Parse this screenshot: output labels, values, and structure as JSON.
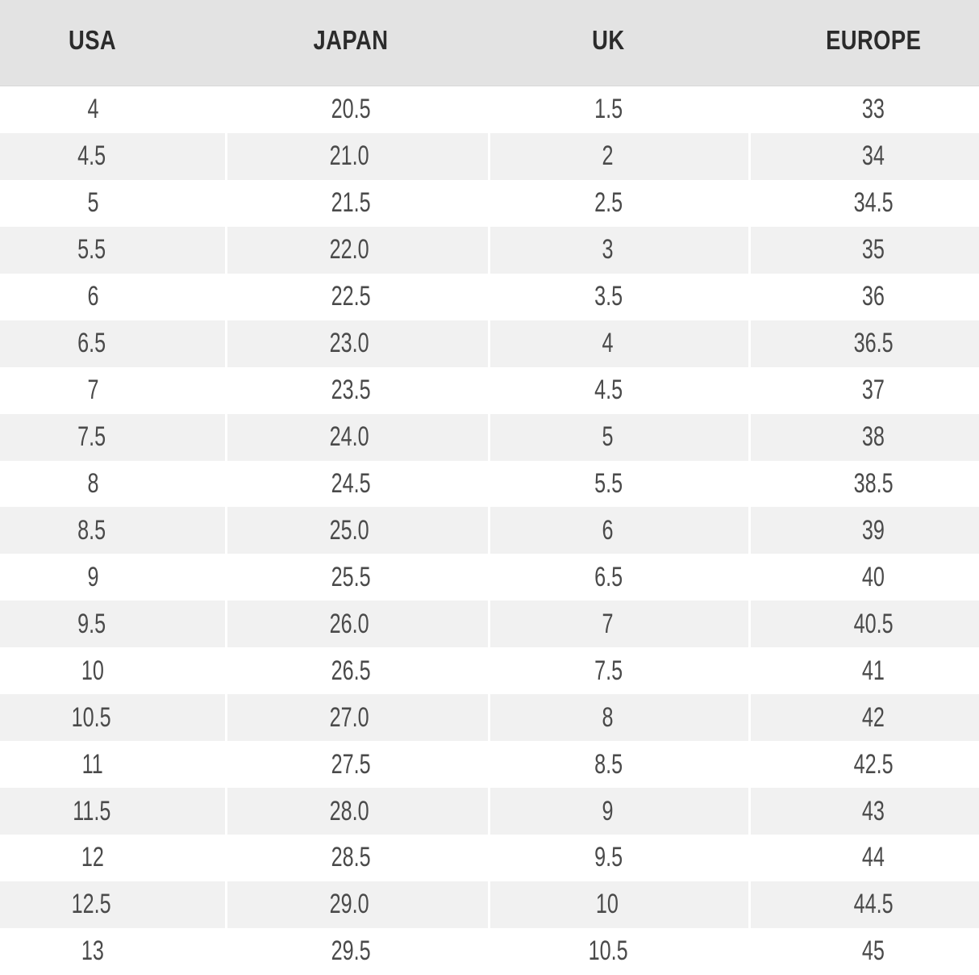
{
  "table": {
    "columns": [
      "USA",
      "JAPAN",
      "UK",
      "EUROPE"
    ],
    "rows": [
      [
        "4",
        "20.5",
        "1.5",
        "33"
      ],
      [
        "4.5",
        "21.0",
        "2",
        "34"
      ],
      [
        "5",
        "21.5",
        "2.5",
        "34.5"
      ],
      [
        "5.5",
        "22.0",
        "3",
        "35"
      ],
      [
        "6",
        "22.5",
        "3.5",
        "36"
      ],
      [
        "6.5",
        "23.0",
        "4",
        "36.5"
      ],
      [
        "7",
        "23.5",
        "4.5",
        "37"
      ],
      [
        "7.5",
        "24.0",
        "5",
        "38"
      ],
      [
        "8",
        "24.5",
        "5.5",
        "38.5"
      ],
      [
        "8.5",
        "25.0",
        "6",
        "39"
      ],
      [
        "9",
        "25.5",
        "6.5",
        "40"
      ],
      [
        "9.5",
        "26.0",
        "7",
        "40.5"
      ],
      [
        "10",
        "26.5",
        "7.5",
        "41"
      ],
      [
        "10.5",
        "27.0",
        "8",
        "42"
      ],
      [
        "11",
        "27.5",
        "8.5",
        "42.5"
      ],
      [
        "11.5",
        "28.0",
        "9",
        "43"
      ],
      [
        "12",
        "28.5",
        "9.5",
        "44"
      ],
      [
        "12.5",
        "29.0",
        "10",
        "44.5"
      ],
      [
        "13",
        "29.5",
        "10.5",
        "45"
      ]
    ]
  },
  "colors": {
    "header_bg": "#e3e3e3",
    "stripe_bg": "#f1f1f1",
    "row_bg": "#ffffff",
    "separator": "#ffffff",
    "header_text": "#2b2b2b",
    "cell_text": "#4a4a4a"
  }
}
